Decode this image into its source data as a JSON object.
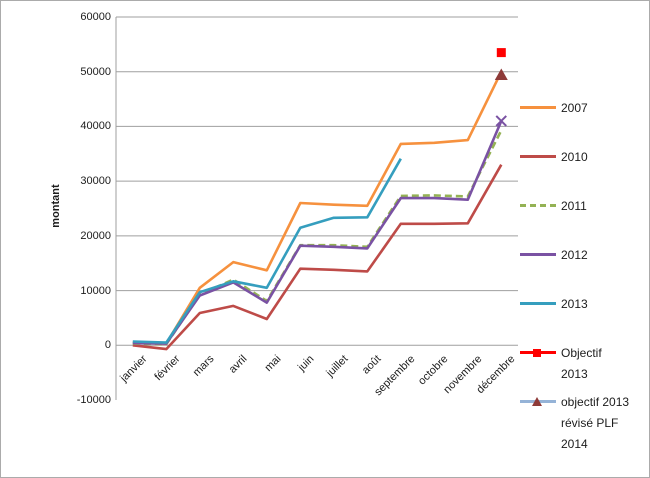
{
  "window": {
    "background": "#ffffff",
    "border_color": "#ababab"
  },
  "chart_data": {
    "type": "line",
    "title": "",
    "xlabel": "",
    "ylabel": "montant",
    "categories": [
      "janvier",
      "février",
      "mars",
      "avril",
      "mai",
      "juin",
      "juillet",
      "août",
      "septembre",
      "octobre",
      "novembre",
      "décembre"
    ],
    "ylim": [
      -10000,
      60000
    ],
    "y_ticks": [
      60000,
      50000,
      40000,
      30000,
      20000,
      10000,
      0,
      -10000
    ],
    "grid": "horizontal",
    "gridline_color": "#9f9f9f",
    "legend_position": "right",
    "series": [
      {
        "name": "2007",
        "color": "#F6913E",
        "line": "solid",
        "marker": "none",
        "legend_lines": [
          "2007"
        ],
        "values": [
          500,
          300,
          10500,
          15200,
          13700,
          26000,
          25700,
          25500,
          36800,
          37000,
          37500,
          50000
        ]
      },
      {
        "name": "2010",
        "color": "#BE4B48",
        "line": "solid",
        "marker": "none",
        "legend_lines": [
          "2010"
        ],
        "values": [
          0,
          -700,
          5900,
          7200,
          4800,
          14000,
          13800,
          13500,
          22200,
          22200,
          22300,
          33000
        ]
      },
      {
        "name": "2011",
        "color": "#94B254",
        "line": "dashed",
        "marker": "none",
        "legend_lines": [
          "2011"
        ],
        "values": [
          300,
          200,
          9300,
          12000,
          8100,
          18300,
          18300,
          18000,
          27300,
          27400,
          27200,
          39300
        ]
      },
      {
        "name": "2012",
        "color": "#7A52A3",
        "line": "solid",
        "marker": "x-last",
        "marker_color": "#7A52A3",
        "legend_lines": [
          "2012"
        ],
        "values": [
          400,
          300,
          9100,
          11500,
          7800,
          18200,
          18000,
          17700,
          26900,
          26900,
          26600,
          41000
        ]
      },
      {
        "name": "2013",
        "color": "#359EBE",
        "line": "solid",
        "marker": "none",
        "legend_lines": [
          "2013"
        ],
        "values": [
          700,
          500,
          9700,
          11700,
          10500,
          21500,
          23300,
          23400,
          34100,
          null,
          null,
          null
        ]
      },
      {
        "name": "Objectif 2013",
        "color": "#FF0000",
        "line": "solid",
        "marker": "square",
        "marker_color": "#FF0000",
        "legend_lines": [
          "Objectif",
          "2013"
        ],
        "values": [
          null,
          null,
          null,
          null,
          null,
          null,
          null,
          null,
          null,
          null,
          null,
          53500
        ]
      },
      {
        "name": "objectif 2013 révisé PLF 2014",
        "color": "#95B3D7",
        "line": "solid",
        "marker": "triangle",
        "marker_color": "#8E3A38",
        "legend_lines": [
          "objectif 2013",
          "révisé PLF",
          "2014"
        ],
        "values": [
          null,
          null,
          null,
          null,
          null,
          null,
          null,
          null,
          null,
          null,
          null,
          49500
        ]
      }
    ]
  }
}
